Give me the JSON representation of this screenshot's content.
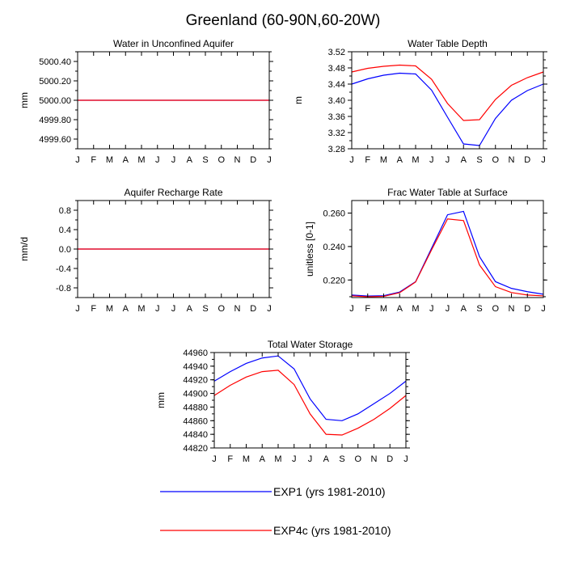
{
  "figure": {
    "title": "Greenland (60-90N,60-20W)",
    "months": [
      "J",
      "F",
      "M",
      "A",
      "M",
      "J",
      "J",
      "A",
      "S",
      "O",
      "N",
      "D",
      "J"
    ]
  },
  "legend": {
    "items": [
      {
        "label": "EXP1 (yrs 1981-2010)",
        "color": "#0000ff"
      },
      {
        "label": "EXP4c (yrs 1981-2010)",
        "color": "#ff0000"
      }
    ]
  },
  "chart_data": [
    {
      "type": "line",
      "title": "Water in Unconfined Aquifer",
      "ylabel": "mm",
      "ylim": [
        4999.5,
        5000.5
      ],
      "yticks": [
        4999.6,
        4999.8,
        5000.0,
        5000.2,
        5000.4
      ],
      "ytick_labels": [
        "4999.60",
        "4999.80",
        "5000.00",
        "5000.20",
        "5000.40"
      ],
      "series": [
        {
          "name": "EXP1 (yrs 1981-2010)",
          "color": "#0000ff",
          "values": [
            5000,
            5000,
            5000,
            5000,
            5000,
            5000,
            5000,
            5000,
            5000,
            5000,
            5000,
            5000,
            5000
          ]
        },
        {
          "name": "EXP4c (yrs 1981-2010)",
          "color": "#ff0000",
          "values": [
            5000,
            5000,
            5000,
            5000,
            5000,
            5000,
            5000,
            5000,
            5000,
            5000,
            5000,
            5000,
            5000
          ]
        }
      ]
    },
    {
      "type": "line",
      "title": "Water Table Depth",
      "ylabel": "m",
      "ylim": [
        3.28,
        3.52
      ],
      "yticks": [
        3.28,
        3.32,
        3.36,
        3.4,
        3.44,
        3.48,
        3.52
      ],
      "ytick_labels": [
        "3.28",
        "3.32",
        "3.36",
        "3.40",
        "3.44",
        "3.48",
        "3.52"
      ],
      "series": [
        {
          "name": "EXP1 (yrs 1981-2010)",
          "color": "#0000ff",
          "values": [
            3.44,
            3.453,
            3.462,
            3.467,
            3.465,
            3.425,
            3.358,
            3.292,
            3.288,
            3.355,
            3.4,
            3.424,
            3.44
          ]
        },
        {
          "name": "EXP4c (yrs 1981-2010)",
          "color": "#ff0000",
          "values": [
            3.47,
            3.479,
            3.484,
            3.487,
            3.485,
            3.452,
            3.392,
            3.35,
            3.352,
            3.402,
            3.437,
            3.456,
            3.47
          ]
        }
      ]
    },
    {
      "type": "line",
      "title": "Aquifer Recharge Rate",
      "ylabel": "mm/d",
      "ylim": [
        -1.0,
        1.0
      ],
      "yticks": [
        -0.8,
        -0.4,
        0.0,
        0.4,
        0.8
      ],
      "ytick_labels": [
        "-0.8",
        "-0.4",
        "0.0",
        "0.4",
        "0.8"
      ],
      "series": [
        {
          "name": "EXP1 (yrs 1981-2010)",
          "color": "#0000ff",
          "values": [
            0,
            0,
            0,
            0,
            0,
            0,
            0,
            0,
            0,
            0,
            0,
            0,
            0
          ]
        },
        {
          "name": "EXP4c (yrs 1981-2010)",
          "color": "#ff0000",
          "values": [
            0,
            0,
            0,
            0,
            0,
            0,
            0,
            0,
            0,
            0,
            0,
            0,
            0
          ]
        }
      ]
    },
    {
      "type": "line",
      "title": "Frac Water Table at Surface",
      "ylabel": "unitless [0-1]",
      "ylim": [
        0.2095,
        0.2675
      ],
      "yticks": [
        0.22,
        0.24,
        0.26
      ],
      "ytick_labels": [
        "0.220",
        "0.240",
        "0.260"
      ],
      "series": [
        {
          "name": "EXP1 (yrs 1981-2010)",
          "color": "#0000ff",
          "values": [
            0.211,
            0.2104,
            0.2106,
            0.2128,
            0.219,
            0.239,
            0.259,
            0.261,
            0.234,
            0.219,
            0.215,
            0.213,
            0.2115
          ]
        },
        {
          "name": "EXP4c (yrs 1981-2010)",
          "color": "#ff0000",
          "values": [
            0.2105,
            0.21,
            0.2102,
            0.2124,
            0.2188,
            0.238,
            0.2565,
            0.2555,
            0.229,
            0.216,
            0.2125,
            0.211,
            0.2105
          ]
        }
      ]
    },
    {
      "type": "line",
      "title": "Total Water Storage",
      "ylabel": "mm",
      "ylim": [
        44820,
        44960
      ],
      "yticks": [
        44820,
        44840,
        44860,
        44880,
        44900,
        44920,
        44940,
        44960
      ],
      "ytick_labels": [
        "44820",
        "44840",
        "44860",
        "44880",
        "44900",
        "44920",
        "44940",
        "44960"
      ],
      "series": [
        {
          "name": "EXP1 (yrs 1981-2010)",
          "color": "#0000ff",
          "values": [
            44918,
            44932,
            44944,
            44952,
            44955,
            44936,
            44892,
            44862,
            44860,
            44870,
            44885,
            44900,
            44918
          ]
        },
        {
          "name": "EXP4c (yrs 1981-2010)",
          "color": "#ff0000",
          "values": [
            44897,
            44912,
            44924,
            44932,
            44934,
            44913,
            44870,
            44840,
            44839,
            44849,
            44862,
            44878,
            44897
          ]
        }
      ]
    }
  ]
}
